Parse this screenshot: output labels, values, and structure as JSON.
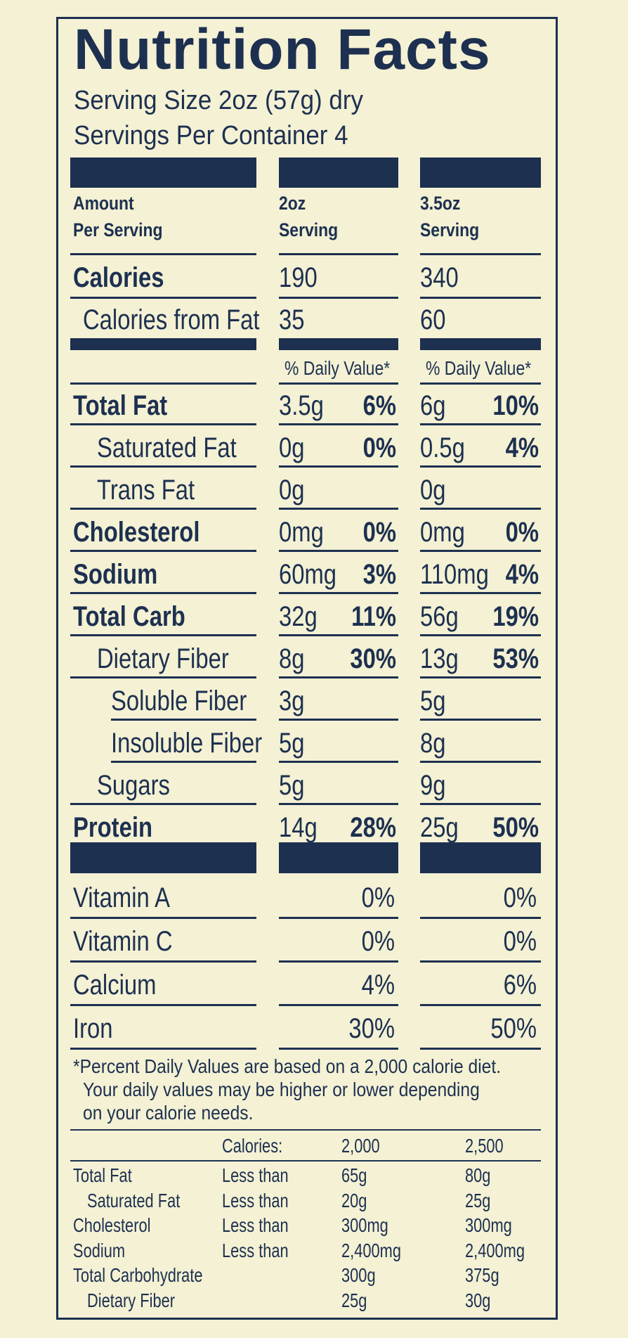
{
  "title": "Nutrition Facts",
  "serving_size": "Serving Size 2oz (57g) dry",
  "servings_per_container": "Servings Per Container 4",
  "header": {
    "amount_1": "Amount",
    "amount_2": "Per Serving",
    "col2_1": "2oz",
    "col2_2": "Serving",
    "col3_1": "3.5oz",
    "col3_2": "Serving"
  },
  "calories": {
    "label": "Calories",
    "v2": "190",
    "v3": "340"
  },
  "calories_fat": {
    "label": "Calories from Fat",
    "v2": "35",
    "v3": "60"
  },
  "dv_header": "% Daily Value*",
  "nutrients": [
    {
      "label": "Total Fat",
      "v2": "3.5g",
      "p2": "6%",
      "v3": "6g",
      "p3": "10%"
    },
    {
      "label": "Saturated Fat",
      "v2": "0g",
      "p2": "0%",
      "v3": "0.5g",
      "p3": "4%"
    },
    {
      "label": "Trans Fat",
      "v2": "0g",
      "p2": "",
      "v3": "0g",
      "p3": ""
    },
    {
      "label": "Cholesterol",
      "v2": "0mg",
      "p2": "0%",
      "v3": "0mg",
      "p3": "0%"
    },
    {
      "label": "Sodium",
      "v2": "60mg",
      "p2": "3%",
      "v3": "110mg",
      "p3": "4%"
    },
    {
      "label": "Total Carb",
      "v2": "32g",
      "p2": "11%",
      "v3": "56g",
      "p3": "19%"
    },
    {
      "label": "Dietary Fiber",
      "v2": "8g",
      "p2": "30%",
      "v3": "13g",
      "p3": "53%"
    },
    {
      "label": "Soluble Fiber",
      "v2": "3g",
      "p2": "",
      "v3": "5g",
      "p3": ""
    },
    {
      "label": "Insoluble Fiber",
      "v2": "5g",
      "p2": "",
      "v3": "8g",
      "p3": ""
    },
    {
      "label": "Sugars",
      "v2": "5g",
      "p2": "",
      "v3": "9g",
      "p3": ""
    },
    {
      "label": "Protein",
      "v2": "14g",
      "p2": "28%",
      "v3": "25g",
      "p3": "50%"
    }
  ],
  "vitamins": [
    {
      "label": "Vitamin A",
      "v2": "0%",
      "v3": "0%"
    },
    {
      "label": "Vitamin C",
      "v2": "0%",
      "v3": "0%"
    },
    {
      "label": "Calcium",
      "v2": "4%",
      "v3": "6%"
    },
    {
      "label": "Iron",
      "v2": "30%",
      "v3": "50%"
    }
  ],
  "footnote": {
    "line1": "*Percent Daily Values are based on a 2,000 calorie diet.",
    "line2": "Your daily values may be higher or lower depending",
    "line3": "on your calorie needs."
  },
  "footer_table": {
    "calories_label": "Calories:",
    "cal_2000": "2,000",
    "cal_2500": "2,500",
    "rows": [
      {
        "nutrient": "Total Fat",
        "limit": "Less than",
        "v2000": "65g",
        "v2500": "80g"
      },
      {
        "nutrient": "Saturated Fat",
        "limit": "Less than",
        "v2000": "20g",
        "v2500": "25g"
      },
      {
        "nutrient": "Cholesterol",
        "limit": "Less than",
        "v2000": "300mg",
        "v2500": "300mg"
      },
      {
        "nutrient": "Sodium",
        "limit": "Less than",
        "v2000": "2,400mg",
        "v2500": "2,400mg"
      },
      {
        "nutrient": "Total Carbohydrate",
        "limit": "",
        "v2000": "300g",
        "v2500": "375g"
      },
      {
        "nutrient": "Dietary Fiber",
        "limit": "",
        "v2000": "25g",
        "v2500": "30g"
      }
    ]
  }
}
